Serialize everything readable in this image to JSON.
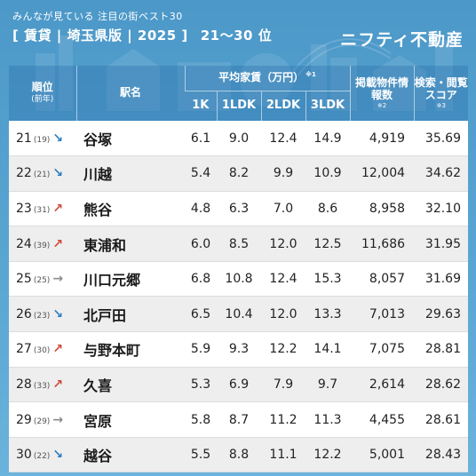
{
  "header": {
    "subtitle": "みんなが見ている 注目の街ベスト30",
    "title": "[ 賃貸 | 埼玉県版 | 2025 ]",
    "range": "21〜30 位",
    "brand": "ニフティ不動産"
  },
  "colors": {
    "background": "#4e9bc9",
    "arrow_down": "#2c7cc0",
    "arrow_up": "#d2483a",
    "arrow_flat": "#8a8a8a"
  },
  "table": {
    "headers": {
      "rank": "順位",
      "rank_sub": "(前年)",
      "station": "駅名",
      "rent": "平均家賃（万円）",
      "rent_note": "※1",
      "k1": "1K",
      "ldk1": "1LDK",
      "ldk2": "2LDK",
      "ldk3": "3LDK",
      "listings": "掲載物件情報数",
      "listings_note": "※2",
      "score": "検索・閲覧スコア",
      "score_note": "※3"
    },
    "rows": [
      {
        "rank": "21",
        "prev": "(19)",
        "trend": "down",
        "arrow": "↘",
        "station": "谷塚",
        "k1": "6.1",
        "ldk1": "9.0",
        "ldk2": "12.4",
        "ldk3": "14.9",
        "listings": "4,919",
        "score": "35.69"
      },
      {
        "rank": "22",
        "prev": "(21)",
        "trend": "down",
        "arrow": "↘",
        "station": "川越",
        "k1": "5.4",
        "ldk1": "8.2",
        "ldk2": "9.9",
        "ldk3": "10.9",
        "listings": "12,004",
        "score": "34.62"
      },
      {
        "rank": "23",
        "prev": "(31)",
        "trend": "up",
        "arrow": "↗",
        "station": "熊谷",
        "k1": "4.8",
        "ldk1": "6.3",
        "ldk2": "7.0",
        "ldk3": "8.6",
        "listings": "8,958",
        "score": "32.10"
      },
      {
        "rank": "24",
        "prev": "(39)",
        "trend": "up",
        "arrow": "↗",
        "station": "東浦和",
        "k1": "6.0",
        "ldk1": "8.5",
        "ldk2": "12.0",
        "ldk3": "12.5",
        "listings": "11,686",
        "score": "31.95"
      },
      {
        "rank": "25",
        "prev": "(25)",
        "trend": "flat",
        "arrow": "→",
        "station": "川口元郷",
        "k1": "6.8",
        "ldk1": "10.8",
        "ldk2": "12.4",
        "ldk3": "15.3",
        "listings": "8,057",
        "score": "31.69"
      },
      {
        "rank": "26",
        "prev": "(23)",
        "trend": "down",
        "arrow": "↘",
        "station": "北戸田",
        "k1": "6.5",
        "ldk1": "10.4",
        "ldk2": "12.0",
        "ldk3": "13.3",
        "listings": "7,013",
        "score": "29.63"
      },
      {
        "rank": "27",
        "prev": "(30)",
        "trend": "up",
        "arrow": "↗",
        "station": "与野本町",
        "k1": "5.9",
        "ldk1": "9.3",
        "ldk2": "12.2",
        "ldk3": "14.1",
        "listings": "7,075",
        "score": "28.81"
      },
      {
        "rank": "28",
        "prev": "(33)",
        "trend": "up",
        "arrow": "↗",
        "station": "久喜",
        "k1": "5.3",
        "ldk1": "6.9",
        "ldk2": "7.9",
        "ldk3": "9.7",
        "listings": "2,614",
        "score": "28.62"
      },
      {
        "rank": "29",
        "prev": "(29)",
        "trend": "flat",
        "arrow": "→",
        "station": "宮原",
        "k1": "5.8",
        "ldk1": "8.7",
        "ldk2": "11.2",
        "ldk3": "11.3",
        "listings": "4,455",
        "score": "28.61"
      },
      {
        "rank": "30",
        "prev": "(22)",
        "trend": "down",
        "arrow": "↘",
        "station": "越谷",
        "k1": "5.5",
        "ldk1": "8.8",
        "ldk2": "11.1",
        "ldk3": "12.2",
        "listings": "5,001",
        "score": "28.43"
      }
    ]
  }
}
